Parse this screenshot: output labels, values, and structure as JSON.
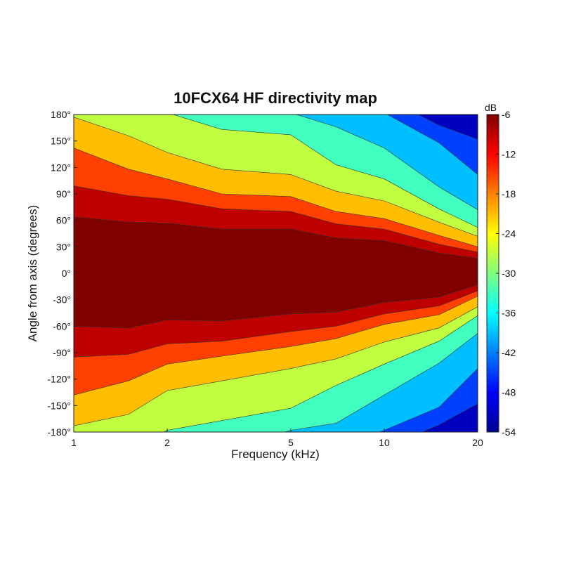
{
  "chart_data": {
    "type": "heatmap",
    "title": "10FCX64 HF directivity map",
    "xlabel": "Frequency (kHz)",
    "ylabel": "Angle from axis (degrees)",
    "x_scale": "log",
    "xlim": [
      1,
      20
    ],
    "ylim": [
      -180,
      180
    ],
    "x_ticks": [
      1,
      2,
      5,
      10,
      20
    ],
    "x_tick_labels": [
      "1",
      "2",
      "5",
      "10",
      "20"
    ],
    "y_ticks": [
      180,
      150,
      120,
      90,
      60,
      30,
      0,
      -30,
      -60,
      -90,
      -120,
      -150,
      -180
    ],
    "y_tick_labels": [
      "180°",
      "150°",
      "120°",
      "90°",
      "60°",
      "30°",
      "0°",
      "-30°",
      "-60°",
      "-90°",
      "-120°",
      "-150°",
      "-180°"
    ],
    "colorbar": {
      "unit_label": "dB",
      "range": [
        -54,
        -6
      ],
      "ticks": [
        -6,
        -12,
        -18,
        -24,
        -30,
        -36,
        -42,
        -48,
        -54
      ],
      "tick_labels": [
        "-6",
        "-12",
        "-18",
        "-24",
        "-30",
        "-36",
        "-42",
        "-48",
        "-54"
      ],
      "colormap": "jet"
    },
    "contour_levels_db": [
      -6,
      -12,
      -18,
      -24,
      -30,
      -36,
      -42,
      -48
    ],
    "level_boundaries_deg": {
      "frequencies_khz": [
        1,
        1.5,
        2,
        3,
        5,
        7,
        10,
        15,
        20
      ],
      "-6dB": [
        62,
        60,
        55,
        52,
        48,
        42,
        35,
        25,
        15
      ],
      "-12dB": [
        97,
        90,
        82,
        75,
        68,
        58,
        48,
        35,
        22
      ],
      "-18dB": [
        140,
        120,
        105,
        92,
        85,
        72,
        60,
        45,
        28
      ],
      "-24dB": [
        175,
        158,
        135,
        120,
        110,
        95,
        80,
        60,
        40
      ],
      "-30dB": [
        null,
        null,
        180,
        165,
        155,
        125,
        105,
        75,
        50
      ],
      "-36dB": [
        null,
        null,
        null,
        null,
        180,
        168,
        140,
        100,
        70
      ],
      "-42dB": [
        null,
        null,
        null,
        null,
        null,
        null,
        180,
        150,
        110
      ],
      "-48dB": [
        null,
        null,
        null,
        null,
        null,
        null,
        null,
        170,
        150
      ]
    },
    "grid": false
  }
}
